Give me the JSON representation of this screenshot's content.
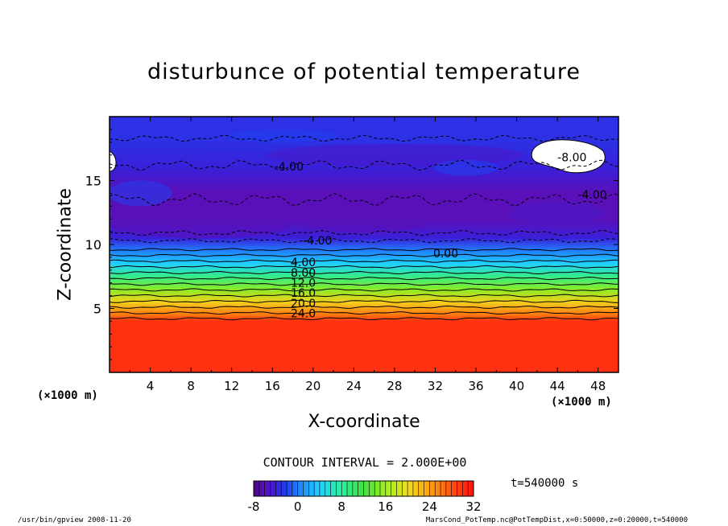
{
  "chart_data": {
    "type": "heatmap",
    "title": "disturbunce of potential temperature",
    "xlabel": "X-coordinate",
    "ylabel": "Z-coordinate",
    "x_unit": "(×1000 m)",
    "xlim": [
      0,
      50
    ],
    "ylim": [
      0,
      20
    ],
    "x_ticks": [
      "4",
      "8",
      "12",
      "16",
      "20",
      "24",
      "28",
      "32",
      "36",
      "40",
      "44",
      "48"
    ],
    "y_ticks": [
      "5",
      "10",
      "15"
    ],
    "colorbar": {
      "range": [
        -8,
        32
      ],
      "tick_labels": [
        "-8",
        "0",
        "8",
        "16",
        "24",
        "32"
      ],
      "colormap": "rainbow (purple to red)"
    },
    "contour_interval": "CONTOUR INTERVAL = 2.000E+00",
    "contour_labels": [
      "-8.00",
      "-4.00",
      "-4.00",
      "-4.00",
      "0.00",
      "4.00",
      "8.00",
      "12.0",
      "16.0",
      "20.0",
      "24.0"
    ],
    "field_profile": [
      {
        "z": 1,
        "value": 30
      },
      {
        "z": 4,
        "value": 30
      },
      {
        "z": 4.5,
        "value": 26
      },
      {
        "z": 5.5,
        "value": 21
      },
      {
        "z": 6.5,
        "value": 15
      },
      {
        "z": 7.5,
        "value": 9
      },
      {
        "z": 8.5,
        "value": 4
      },
      {
        "z": 9.5,
        "value": 0
      },
      {
        "z": 10.5,
        "value": -4
      },
      {
        "z": 12,
        "value": -6
      },
      {
        "z": 14,
        "value": -6
      },
      {
        "z": 16,
        "value": -4
      },
      {
        "z": 18,
        "value": -3
      },
      {
        "z": 20,
        "value": -3
      }
    ],
    "time": "t=540000  s"
  },
  "footer": {
    "left": "/usr/bin/gpview   2008-11-20",
    "right": "MarsCond_PotTemp.nc@PotTempDist,x=0:50000,z=0:20000,t=540000"
  },
  "colors": {
    "purple": "#5a10b8",
    "blue": "#2030e0",
    "cyan": "#20d0ff",
    "green": "#40e040",
    "yellow": "#f0e020",
    "orange": "#ff8010",
    "red": "#ff2010"
  }
}
